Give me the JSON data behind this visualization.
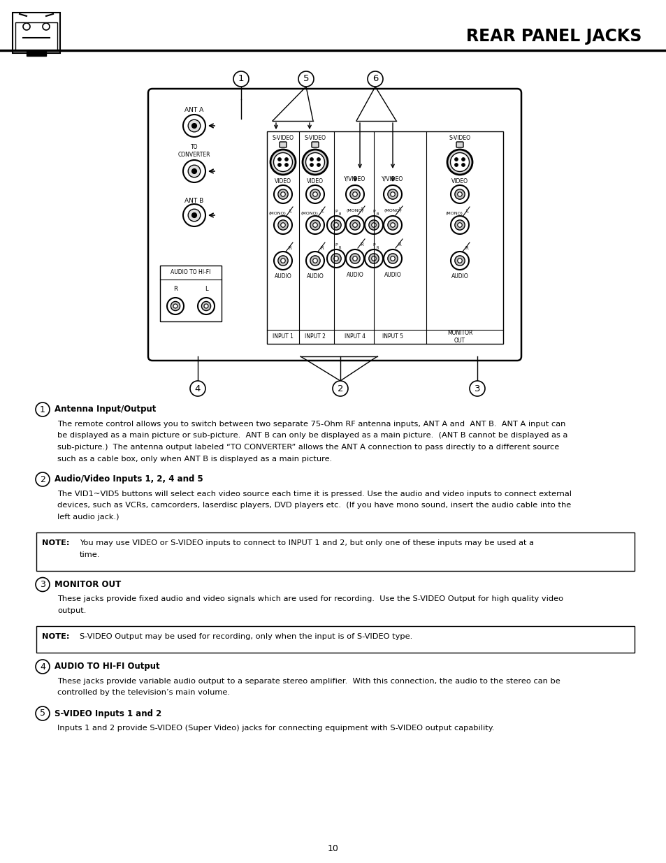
{
  "title": "REAR PANEL JACKS",
  "page_number": "10",
  "background_color": "#ffffff",
  "section1_heading": "Antenna Input/Output",
  "section1_body": "The remote control allows you to switch between two separate 75-Ohm RF antenna inputs, ANT A and  ANT B.  ANT A input can\nbe displayed as a main picture or sub-picture.  ANT B can only be displayed as a main picture.  (ANT B cannot be displayed as a\nsub-picture.)  The antenna output labeled “TO CONVERTER” allows the ANT A connection to pass directly to a different source\nsuch as a cable box, only when ANT B is displayed as a main picture.",
  "section2_heading": "Audio/Video Inputs 1, 2, 4 and 5",
  "section2_body": "The VID1~VID5 buttons will select each video source each time it is pressed. Use the audio and video inputs to connect external\ndevices, such as VCRs, camcorders, laserdisc players, DVD players etc.  (If you have mono sound, insert the audio cable into the\nleft audio jack.)",
  "note1_label": "NOTE:",
  "note1_body": "You may use VIDEO or S-VIDEO inputs to connect to INPUT 1 and 2, but only one of these inputs may be used at a\ntime.",
  "section3_heading": "MONITOR OUT",
  "section3_body": "These jacks provide fixed audio and video signals which are used for recording.  Use the S-VIDEO Output for high quality video\noutput.",
  "note2_label": "NOTE:",
  "note2_body": "S-VIDEO Output may be used for recording, only when the input is of S-VIDEO type.",
  "section4_heading": "AUDIO TO HI-FI Output",
  "section4_body": "These jacks provide variable audio output to a separate stereo amplifier.  With this connection, the audio to the stereo can be\ncontrolled by the television’s main volume.",
  "section5_heading": "S-VIDEO Inputs 1 and 2",
  "section5_body": "Inputs 1 and 2 provide S-VIDEO (Super Video) jacks for connecting equipment with S-VIDEO output capability."
}
